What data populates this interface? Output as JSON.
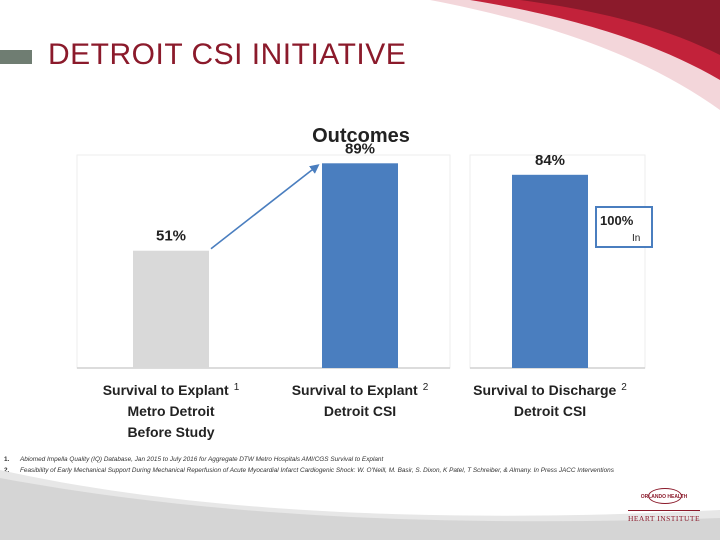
{
  "slide": {
    "title": "DETROIT CSI INITIATIVE"
  },
  "chart_data": {
    "type": "bar",
    "title": "Outcomes",
    "ylim": [
      0,
      100
    ],
    "bars": [
      {
        "value": 51,
        "label": "51%",
        "color": "#d9d9d9",
        "category_lines": [
          "Survival to Explant",
          "Metro Detroit",
          "Before Study"
        ],
        "superscript": "1"
      },
      {
        "value": 89,
        "label": "89%",
        "color": "#4a7ebf",
        "category_lines": [
          "Survival to Explant",
          "Detroit CSI"
        ],
        "superscript": "2"
      },
      {
        "value": 84,
        "label": "84%",
        "color": "#4a7ebf",
        "category_lines": [
          "Survival to Discharge",
          "Detroit CSI"
        ],
        "superscript": "2"
      }
    ],
    "callout": {
      "value_text": "100%",
      "sub_text": "In"
    },
    "arrow": {
      "from_bar": 0,
      "to_bar": 1
    }
  },
  "references": [
    {
      "num": "1.",
      "text": "Abiomed Impella Quality (IQ) Database, Jan 2015 to July 2016 for Aggregate DTW Metro Hospitals AMI/CGS Survival to Explant"
    },
    {
      "num": "2.",
      "text": "Feasibility of Early Mechanical Support During Mechanical Reperfusion of Acute Myocardial Infarct Cardiogenic Shock: W. O'Neill, M. Basir, S. Dixon, K Patel, T Schreiber, & Almany. In Press JACC Interventions"
    }
  ],
  "logo": {
    "line1": "ORLANDO HEALTH",
    "line2": "HEART INSTITUTE"
  },
  "colors": {
    "accent": "#8b1a2b",
    "bar_blue": "#4a7ebf",
    "bar_gray": "#d9d9d9"
  }
}
